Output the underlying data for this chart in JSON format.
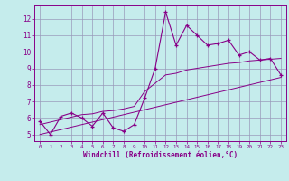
{
  "x": [
    0,
    1,
    2,
    3,
    4,
    5,
    6,
    7,
    8,
    9,
    10,
    11,
    12,
    13,
    14,
    15,
    16,
    17,
    18,
    19,
    20,
    21,
    22,
    23
  ],
  "y_main": [
    5.8,
    5.0,
    6.1,
    6.3,
    6.0,
    5.5,
    6.3,
    5.4,
    5.2,
    5.6,
    7.2,
    9.0,
    12.4,
    10.4,
    11.6,
    11.0,
    10.4,
    10.5,
    10.7,
    9.8,
    10.0,
    9.5,
    9.6,
    8.6
  ],
  "y_trend1": [
    5.0,
    5.15,
    5.3,
    5.45,
    5.6,
    5.75,
    5.9,
    6.05,
    6.2,
    6.35,
    6.5,
    6.65,
    6.8,
    6.95,
    7.1,
    7.25,
    7.4,
    7.55,
    7.7,
    7.85,
    8.0,
    8.15,
    8.3,
    8.45
  ],
  "y_trend2": [
    5.6,
    5.75,
    5.9,
    6.05,
    6.2,
    6.25,
    6.4,
    6.45,
    6.55,
    6.7,
    7.6,
    8.1,
    8.6,
    8.7,
    8.9,
    9.0,
    9.1,
    9.2,
    9.3,
    9.35,
    9.45,
    9.5,
    9.55,
    9.6
  ],
  "line_color": "#880088",
  "bg_color": "#c5ecec",
  "grid_color": "#9999bb",
  "xlabel": "Windchill (Refroidissement éolien,°C)",
  "ylim": [
    4.6,
    12.8
  ],
  "xlim": [
    -0.5,
    23.5
  ],
  "yticks": [
    5,
    6,
    7,
    8,
    9,
    10,
    11,
    12
  ],
  "xticks": [
    0,
    1,
    2,
    3,
    4,
    5,
    6,
    7,
    8,
    9,
    10,
    11,
    12,
    13,
    14,
    15,
    16,
    17,
    18,
    19,
    20,
    21,
    22,
    23
  ]
}
